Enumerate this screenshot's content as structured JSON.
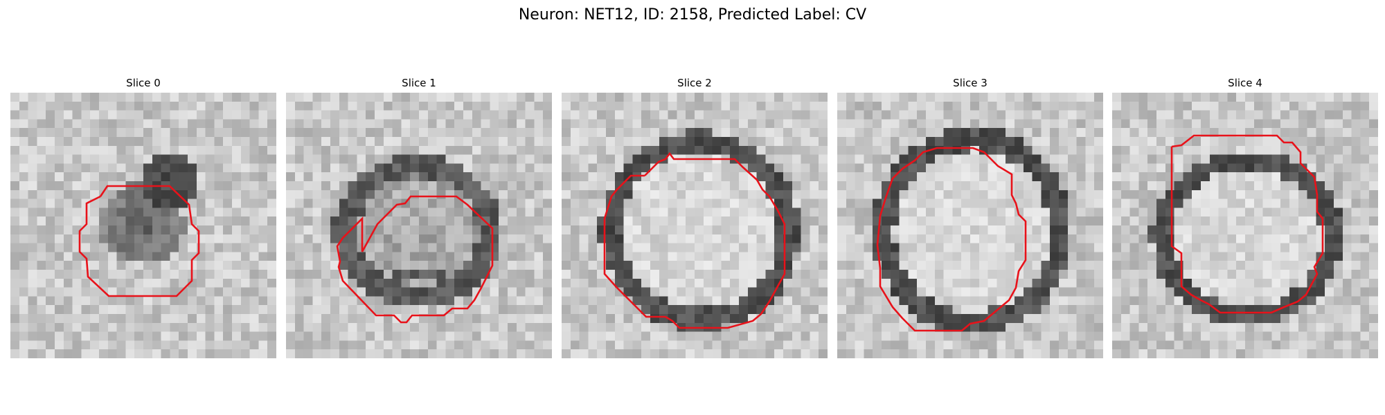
{
  "figure": {
    "title": "Neuron: NET12, ID: 2158, Predicted Label: CV"
  },
  "panels": [
    {
      "title": "Slice 0"
    },
    {
      "title": "Slice 1"
    },
    {
      "title": "Slice 2"
    },
    {
      "title": "Slice 3"
    },
    {
      "title": "Slice 4"
    }
  ],
  "colors": {
    "contour": "#e8121a",
    "background": "#ffffff"
  }
}
